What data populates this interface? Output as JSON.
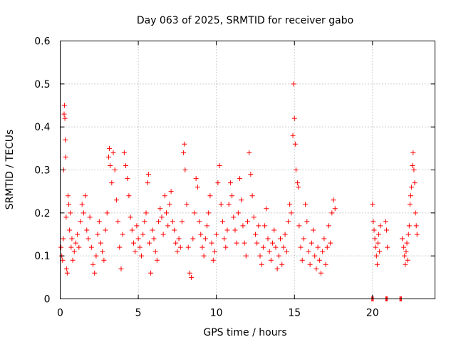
{
  "chart_data": {
    "type": "scatter",
    "title": "Day 063 of 2025, SRMTID for receiver gabo",
    "xlabel": "GPS time / hours",
    "ylabel": "SRMTID / TECUs",
    "xlim": [
      0,
      24
    ],
    "ylim": [
      0,
      0.6
    ],
    "xticks": [
      0,
      5,
      10,
      15,
      20
    ],
    "xtick_labels": [
      "0",
      "5",
      "10",
      "15",
      "20"
    ],
    "yticks": [
      0,
      0.1,
      0.2,
      0.3,
      0.4,
      0.5,
      0.6
    ],
    "ytick_labels": [
      "0",
      "0.1",
      "0.2",
      "0.3",
      "0.4",
      "0.5",
      "0.6"
    ],
    "grid": true,
    "marker": "+",
    "color": "#ff0000",
    "series": [
      {
        "name": "SRMTID",
        "points": [
          [
            0.05,
            0.12
          ],
          [
            0.1,
            0.1
          ],
          [
            0.15,
            0.09
          ],
          [
            0.2,
            0.14
          ],
          [
            0.22,
            0.3
          ],
          [
            0.25,
            0.43
          ],
          [
            0.27,
            0.45
          ],
          [
            0.3,
            0.42
          ],
          [
            0.32,
            0.37
          ],
          [
            0.35,
            0.33
          ],
          [
            0.38,
            0.19
          ],
          [
            0.4,
            0.07
          ],
          [
            0.45,
            0.06
          ],
          [
            0.5,
            0.24
          ],
          [
            0.55,
            0.22
          ],
          [
            0.6,
            0.16
          ],
          [
            0.65,
            0.2
          ],
          [
            0.7,
            0.12
          ],
          [
            0.75,
            0.14
          ],
          [
            0.8,
            0.09
          ],
          [
            0.9,
            0.11
          ],
          [
            1.0,
            0.13
          ],
          [
            1.1,
            0.15
          ],
          [
            1.2,
            0.12
          ],
          [
            1.3,
            0.18
          ],
          [
            1.4,
            0.22
          ],
          [
            1.5,
            0.2
          ],
          [
            1.6,
            0.24
          ],
          [
            1.7,
            0.16
          ],
          [
            1.8,
            0.14
          ],
          [
            1.9,
            0.19
          ],
          [
            2.0,
            0.12
          ],
          [
            2.1,
            0.08
          ],
          [
            2.2,
            0.06
          ],
          [
            2.3,
            0.1
          ],
          [
            2.4,
            0.15
          ],
          [
            2.5,
            0.18
          ],
          [
            2.6,
            0.13
          ],
          [
            2.7,
            0.11
          ],
          [
            2.8,
            0.09
          ],
          [
            2.9,
            0.16
          ],
          [
            3.0,
            0.2
          ],
          [
            3.1,
            0.33
          ],
          [
            3.15,
            0.35
          ],
          [
            3.2,
            0.31
          ],
          [
            3.3,
            0.27
          ],
          [
            3.4,
            0.34
          ],
          [
            3.5,
            0.3
          ],
          [
            3.6,
            0.23
          ],
          [
            3.7,
            0.18
          ],
          [
            3.8,
            0.12
          ],
          [
            3.9,
            0.07
          ],
          [
            4.0,
            0.15
          ],
          [
            4.1,
            0.34
          ],
          [
            4.2,
            0.31
          ],
          [
            4.3,
            0.28
          ],
          [
            4.4,
            0.24
          ],
          [
            4.5,
            0.19
          ],
          [
            4.6,
            0.16
          ],
          [
            4.7,
            0.13
          ],
          [
            4.8,
            0.11
          ],
          [
            4.9,
            0.17
          ],
          [
            5.0,
            0.14
          ],
          [
            5.1,
            0.12
          ],
          [
            5.2,
            0.1
          ],
          [
            5.3,
            0.15
          ],
          [
            5.4,
            0.18
          ],
          [
            5.5,
            0.2
          ],
          [
            5.6,
            0.27
          ],
          [
            5.65,
            0.29
          ],
          [
            5.7,
            0.13
          ],
          [
            5.8,
            0.06
          ],
          [
            5.9,
            0.16
          ],
          [
            6.0,
            0.14
          ],
          [
            6.1,
            0.11
          ],
          [
            6.2,
            0.09
          ],
          [
            6.3,
            0.18
          ],
          [
            6.4,
            0.21
          ],
          [
            6.5,
            0.19
          ],
          [
            6.6,
            0.15
          ],
          [
            6.7,
            0.24
          ],
          [
            6.8,
            0.2
          ],
          [
            6.9,
            0.17
          ],
          [
            7.0,
            0.22
          ],
          [
            7.1,
            0.25
          ],
          [
            7.2,
            0.18
          ],
          [
            7.3,
            0.16
          ],
          [
            7.4,
            0.13
          ],
          [
            7.5,
            0.11
          ],
          [
            7.6,
            0.14
          ],
          [
            7.7,
            0.12
          ],
          [
            7.8,
            0.18
          ],
          [
            7.9,
            0.34
          ],
          [
            7.95,
            0.36
          ],
          [
            8.0,
            0.3
          ],
          [
            8.1,
            0.22
          ],
          [
            8.2,
            0.12
          ],
          [
            8.3,
            0.06
          ],
          [
            8.4,
            0.05
          ],
          [
            8.5,
            0.14
          ],
          [
            8.6,
            0.2
          ],
          [
            8.7,
            0.28
          ],
          [
            8.8,
            0.26
          ],
          [
            8.9,
            0.18
          ],
          [
            9.0,
            0.15
          ],
          [
            9.1,
            0.12
          ],
          [
            9.2,
            0.1
          ],
          [
            9.3,
            0.14
          ],
          [
            9.4,
            0.17
          ],
          [
            9.5,
            0.2
          ],
          [
            9.6,
            0.24
          ],
          [
            9.7,
            0.13
          ],
          [
            9.8,
            0.09
          ],
          [
            9.9,
            0.11
          ],
          [
            10.0,
            0.15
          ],
          [
            10.1,
            0.27
          ],
          [
            10.2,
            0.31
          ],
          [
            10.3,
            0.22
          ],
          [
            10.4,
            0.18
          ],
          [
            10.5,
            0.14
          ],
          [
            10.6,
            0.12
          ],
          [
            10.7,
            0.16
          ],
          [
            10.8,
            0.22
          ],
          [
            10.9,
            0.27
          ],
          [
            11.0,
            0.24
          ],
          [
            11.1,
            0.19
          ],
          [
            11.2,
            0.16
          ],
          [
            11.3,
            0.13
          ],
          [
            11.4,
            0.2
          ],
          [
            11.5,
            0.28
          ],
          [
            11.6,
            0.23
          ],
          [
            11.7,
            0.17
          ],
          [
            11.8,
            0.13
          ],
          [
            11.9,
            0.1
          ],
          [
            12.0,
            0.18
          ],
          [
            12.1,
            0.34
          ],
          [
            12.2,
            0.29
          ],
          [
            12.3,
            0.24
          ],
          [
            12.4,
            0.19
          ],
          [
            12.5,
            0.15
          ],
          [
            12.6,
            0.13
          ],
          [
            12.7,
            0.17
          ],
          [
            12.8,
            0.1
          ],
          [
            12.9,
            0.08
          ],
          [
            13.0,
            0.12
          ],
          [
            13.1,
            0.17
          ],
          [
            13.2,
            0.21
          ],
          [
            13.3,
            0.14
          ],
          [
            13.4,
            0.11
          ],
          [
            13.5,
            0.09
          ],
          [
            13.6,
            0.13
          ],
          [
            13.7,
            0.16
          ],
          [
            13.8,
            0.12
          ],
          [
            13.9,
            0.07
          ],
          [
            14.0,
            0.1
          ],
          [
            14.1,
            0.14
          ],
          [
            14.2,
            0.08
          ],
          [
            14.3,
            0.12
          ],
          [
            14.4,
            0.15
          ],
          [
            14.5,
            0.11
          ],
          [
            14.6,
            0.18
          ],
          [
            14.7,
            0.22
          ],
          [
            14.8,
            0.2
          ],
          [
            14.9,
            0.38
          ],
          [
            14.95,
            0.5
          ],
          [
            15.0,
            0.42
          ],
          [
            15.05,
            0.36
          ],
          [
            15.1,
            0.3
          ],
          [
            15.2,
            0.27
          ],
          [
            15.25,
            0.26
          ],
          [
            15.3,
            0.17
          ],
          [
            15.4,
            0.12
          ],
          [
            15.5,
            0.09
          ],
          [
            15.6,
            0.14
          ],
          [
            15.7,
            0.22
          ],
          [
            15.8,
            0.18
          ],
          [
            15.9,
            0.11
          ],
          [
            16.0,
            0.08
          ],
          [
            16.1,
            0.13
          ],
          [
            16.2,
            0.16
          ],
          [
            16.3,
            0.1
          ],
          [
            16.4,
            0.07
          ],
          [
            16.5,
            0.12
          ],
          [
            16.6,
            0.09
          ],
          [
            16.7,
            0.06
          ],
          [
            16.8,
            0.11
          ],
          [
            16.9,
            0.14
          ],
          [
            17.0,
            0.08
          ],
          [
            17.1,
            0.12
          ],
          [
            17.2,
            0.17
          ],
          [
            17.3,
            0.13
          ],
          [
            17.4,
            0.2
          ],
          [
            17.5,
            0.23
          ],
          [
            17.6,
            0.21
          ],
          [
            20.0,
            0.22
          ],
          [
            20.05,
            0.18
          ],
          [
            20.1,
            0.16
          ],
          [
            20.15,
            0.14
          ],
          [
            20.2,
            0.12
          ],
          [
            20.25,
            0.1
          ],
          [
            20.3,
            0.08
          ],
          [
            20.35,
            0.13
          ],
          [
            20.4,
            0.15
          ],
          [
            20.45,
            0.11
          ],
          [
            20.5,
            0.17
          ],
          [
            20.85,
            0.18
          ],
          [
            20.9,
            0.16
          ],
          [
            20.95,
            0.12
          ],
          [
            21.9,
            0.14
          ],
          [
            22.0,
            0.12
          ],
          [
            22.05,
            0.1
          ],
          [
            22.1,
            0.08
          ],
          [
            22.15,
            0.11
          ],
          [
            22.2,
            0.13
          ],
          [
            22.25,
            0.09
          ],
          [
            22.3,
            0.15
          ],
          [
            22.35,
            0.17
          ],
          [
            22.4,
            0.22
          ],
          [
            22.45,
            0.24
          ],
          [
            22.5,
            0.26
          ],
          [
            22.55,
            0.31
          ],
          [
            22.6,
            0.34
          ],
          [
            22.65,
            0.3
          ],
          [
            22.7,
            0.27
          ],
          [
            22.75,
            0.2
          ],
          [
            22.8,
            0.17
          ],
          [
            22.85,
            0.15
          ],
          [
            19.95,
            0.0
          ],
          [
            20.0,
            0.0
          ],
          [
            20.05,
            0.0
          ],
          [
            20.85,
            0.0
          ],
          [
            20.9,
            0.0
          ],
          [
            20.95,
            0.0
          ],
          [
            21.75,
            0.0
          ],
          [
            21.8,
            0.0
          ],
          [
            21.85,
            0.0
          ]
        ]
      }
    ]
  }
}
